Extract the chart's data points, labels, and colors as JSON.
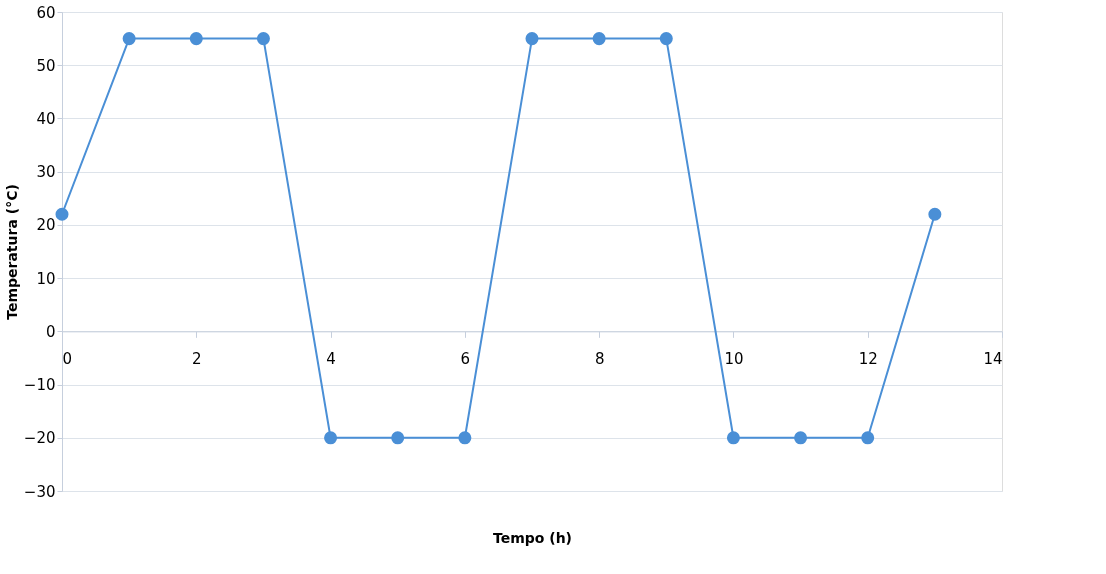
{
  "chart_data": {
    "type": "line",
    "xlabel": "Tempo (h)",
    "ylabel": "Temperatura (°C)",
    "x": [
      0,
      1,
      2,
      3,
      4,
      5,
      6,
      7,
      8,
      9,
      10,
      11,
      12,
      13
    ],
    "series": [
      {
        "color": "#4a8fd6",
        "values": [
          22,
          55,
          55,
          55,
          -20,
          -20,
          -20,
          55,
          55,
          55,
          -20,
          -20,
          -20,
          22
        ]
      }
    ],
    "xlim": [
      0,
      14
    ],
    "xticks": [
      0,
      2,
      4,
      6,
      8,
      10,
      12,
      14
    ],
    "ylim": [
      -30,
      60
    ],
    "yticks": [
      -30,
      -20,
      -10,
      0,
      10,
      20,
      30,
      40,
      50,
      60
    ],
    "grid": "y",
    "marker": "circle",
    "line_style": "solid",
    "legend": false
  }
}
